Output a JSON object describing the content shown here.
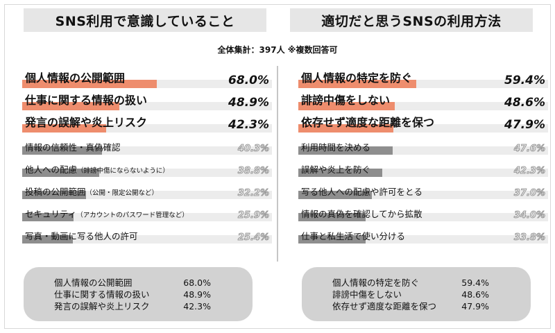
{
  "subtitle": "全体集計：397人 ※複数回答可",
  "colors": {
    "accent": "#ee8d6d",
    "rest": "#8e8e8e",
    "track": "#ececec",
    "panel_bg": "#e6e6e6",
    "summary_bg": "#d2d2d2"
  },
  "chart_data": [
    {
      "type": "bar",
      "title": "SNS利用で意識していること",
      "orientation": "horizontal",
      "categories": [
        "個人情報の公開範囲",
        "仕事に関する情報の扱い",
        "発言の誤解や炎上リスク",
        "情報の信頼性・真偽確認",
        "他人への配慮",
        "投稿の公開範囲",
        "セキュリティ",
        "写真・動画に写る他人の許可"
      ],
      "notes": [
        "",
        "",
        "",
        "",
        "（誹謗中傷にならないように）",
        "（公開・限定公開など）",
        "（アカウントのパスワード管理など）",
        ""
      ],
      "values": [
        68.0,
        48.9,
        42.3,
        40.3,
        38.8,
        32.2,
        25.9,
        25.4
      ],
      "value_labels": [
        "68.0%",
        "48.9%",
        "42.3%",
        "40.3%",
        "38.8%",
        "32.2%",
        "25.9%",
        "25.4%"
      ],
      "xlim": [
        0,
        100
      ],
      "highlight_count": 3
    },
    {
      "type": "bar",
      "title": "適切だと思うSNSの利用方法",
      "orientation": "horizontal",
      "categories": [
        "個人情報の特定を防ぐ",
        "誹謗中傷をしない",
        "依存せず適度な距離を保つ",
        "利用時間を決める",
        "誤解や炎上を防ぐ",
        "写る他人への配慮や許可をとる",
        "情報の真偽を確認してから拡散",
        "仕事と私生活で使い分ける"
      ],
      "notes": [
        "",
        "",
        "",
        "",
        "",
        "",
        "",
        ""
      ],
      "values": [
        59.4,
        48.6,
        47.9,
        47.6,
        42.3,
        37.0,
        34.0,
        33.8
      ],
      "value_labels": [
        "59.4%",
        "48.6%",
        "47.9%",
        "47.6%",
        "42.3%",
        "37.0%",
        "34.0%",
        "33.8%"
      ],
      "xlim": [
        0,
        100
      ],
      "highlight_count": 3
    }
  ],
  "summary_left": [
    {
      "label": "個人情報の公開範囲",
      "value": "68.0%"
    },
    {
      "label": "仕事に関する情報の扱い",
      "value": "48.9%"
    },
    {
      "label": "発言の誤解や炎上リスク",
      "value": "42.3%"
    }
  ],
  "summary_right": [
    {
      "label": "個人情報の特定を防ぐ",
      "value": "59.4%"
    },
    {
      "label": "誹謗中傷をしない",
      "value": "48.6%"
    },
    {
      "label": "依存せず適度な距離を保つ",
      "value": "47.9%"
    }
  ]
}
